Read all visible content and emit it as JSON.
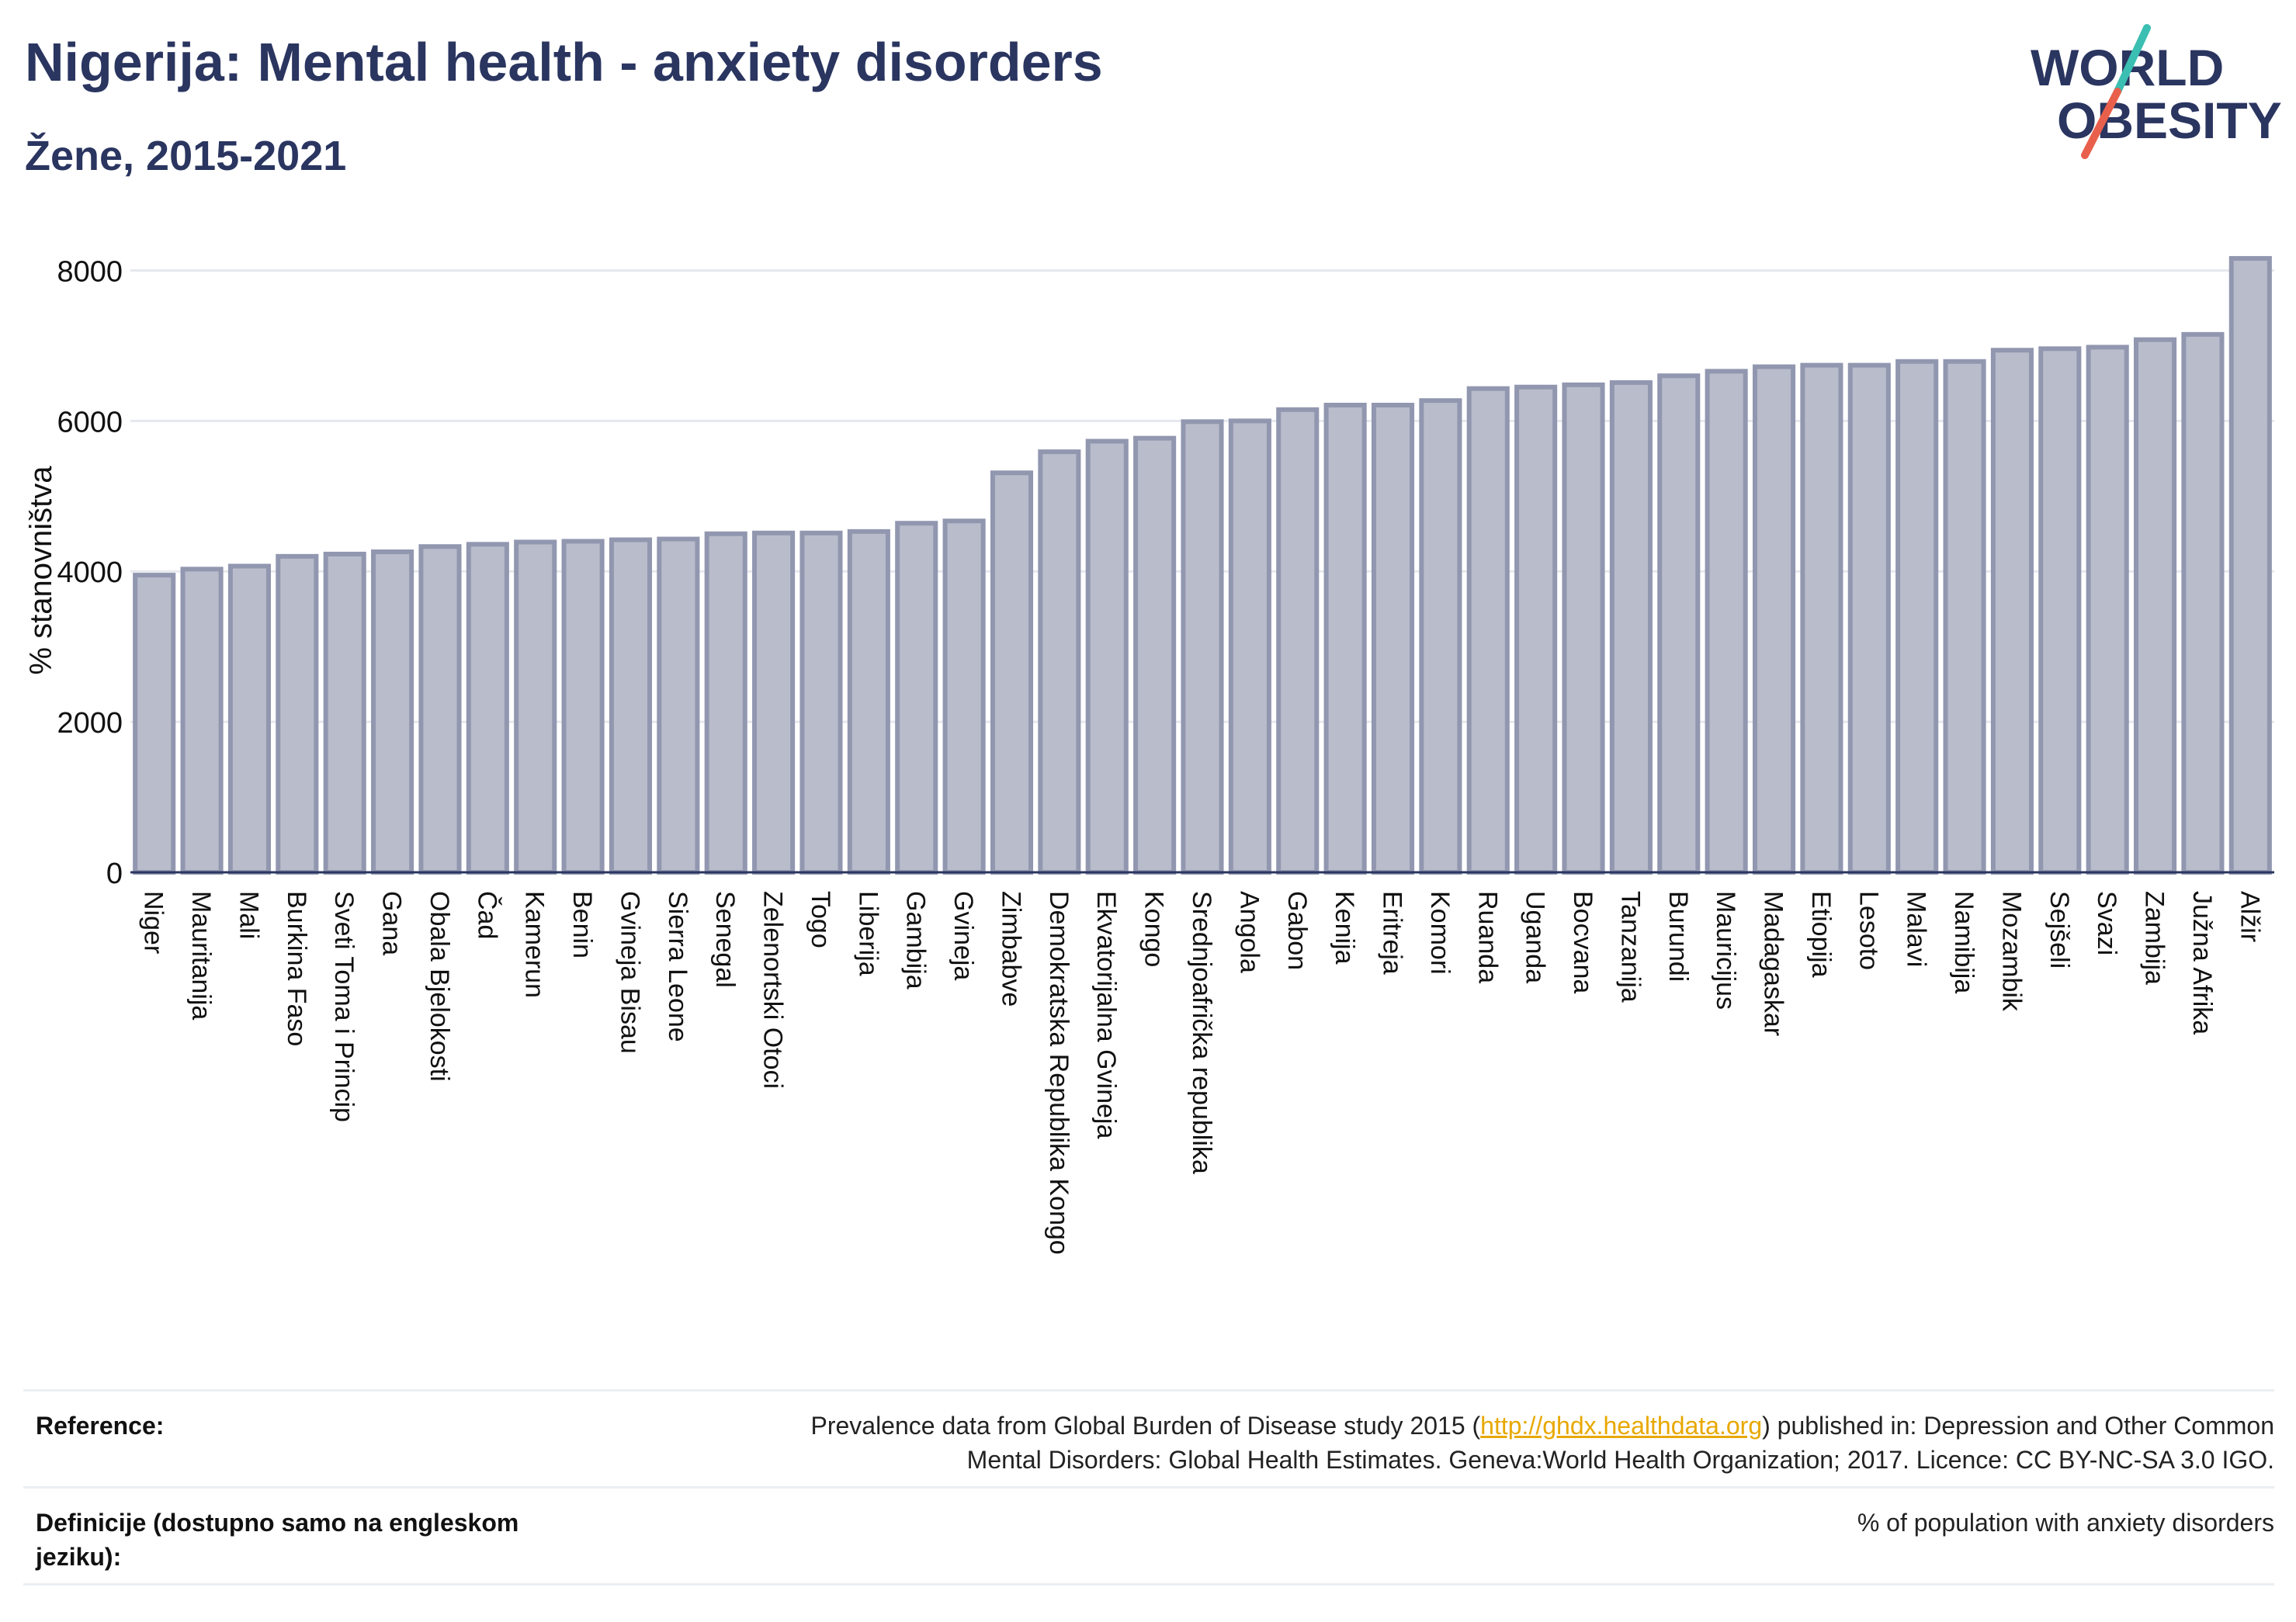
{
  "header": {
    "title": "Nigerija: Mental health - anxiety disorders",
    "subtitle": "Žene, 2015-2021"
  },
  "logo": {
    "line1": "WORLD",
    "line2": "OBESITY",
    "accent_teal": "#3bbfb2",
    "accent_red": "#e8604c",
    "text_color": "#2a3560"
  },
  "chart_data": {
    "type": "bar",
    "title": "",
    "xlabel": "",
    "ylabel": "% stanovništva",
    "ylim": [
      0,
      8500
    ],
    "yticks": [
      0,
      2000,
      4000,
      6000,
      8000
    ],
    "grid": true,
    "bar_color": "#b9bccb",
    "bar_edge_color": "#9297b0",
    "categories": [
      "Niger",
      "Mauritanija",
      "Mali",
      "Burkina Faso",
      "Sveti Toma i Princip",
      "Gana",
      "Obala Bjelokosti",
      "Čad",
      "Kamerun",
      "Benin",
      "Gvineja Bisau",
      "Sierra Leone",
      "Senegal",
      "Zelenortski Otoci",
      "Togo",
      "Liberija",
      "Gambija",
      "Gvineja",
      "Zimbabve",
      "Demokratska Republika Kongo",
      "Ekvatorijalna Gvineja",
      "Kongo",
      "Srednjoafrička republika",
      "Angola",
      "Gabon",
      "Kenija",
      "Eritreja",
      "Komori",
      "Ruanda",
      "Uganda",
      "Bocvana",
      "Tanzanija",
      "Burundi",
      "Mauricijus",
      "Madagaskar",
      "Etiopija",
      "Lesoto",
      "Malavi",
      "Namibija",
      "Mozambik",
      "Sejšeli",
      "Svazi",
      "Zambija",
      "Južna Afrika",
      "Alžir"
    ],
    "values": [
      3950,
      4030,
      4070,
      4200,
      4230,
      4260,
      4330,
      4360,
      4390,
      4400,
      4420,
      4430,
      4500,
      4510,
      4510,
      4530,
      4640,
      4670,
      5310,
      5590,
      5730,
      5770,
      5990,
      6000,
      6150,
      6210,
      6210,
      6270,
      6430,
      6450,
      6480,
      6510,
      6600,
      6660,
      6720,
      6740,
      6740,
      6790,
      6790,
      6940,
      6960,
      6980,
      7080,
      7150,
      8160
    ]
  },
  "footer": {
    "reference_label": "Reference:",
    "reference_pre": "Prevalence data from Global Burden of Disease study 2015 (",
    "reference_link": "http://ghdx.healthdata.org",
    "reference_post": ") published in: Depression and Other Common",
    "reference_line2": "Mental Disorders: Global Health Estimates. Geneva:World Health Organization; 2017. Licence: CC BY-NC-SA 3.0 IGO.",
    "definition_label_line1": "Definicije (dostupno samo na engleskom",
    "definition_label_line2": "jeziku):",
    "definition_text": "% of population with anxiety disorders"
  }
}
